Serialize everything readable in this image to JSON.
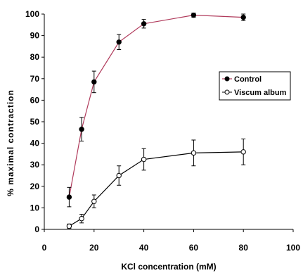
{
  "chart_data": {
    "type": "line",
    "xlabel": "KCl concentration (mM)",
    "ylabel": "% maximal contraction",
    "xlim": [
      0,
      100
    ],
    "ylim": [
      0,
      100
    ],
    "xticks": [
      0,
      20,
      40,
      60,
      80,
      100
    ],
    "yticks": [
      0,
      10,
      20,
      30,
      40,
      50,
      60,
      70,
      80,
      90,
      100
    ],
    "xtick_labels": [
      "0",
      "20",
      "40",
      "60",
      "80",
      "100"
    ],
    "ytick_labels": [
      "0",
      "10",
      "20",
      "30",
      "40",
      "50",
      "60",
      "70",
      "80",
      "90",
      "100"
    ],
    "grid": false,
    "legend_position": "right",
    "series": [
      {
        "name": "Control",
        "marker": "filled-circle",
        "color": "#b03a5b",
        "marker_color": "#000000",
        "x": [
          10,
          15,
          20,
          30,
          40,
          60,
          80
        ],
        "y": [
          15,
          46.5,
          68.5,
          87,
          95.5,
          99.5,
          98.5
        ],
        "err": [
          4.5,
          5.5,
          5,
          3.5,
          2,
          1,
          1.5
        ]
      },
      {
        "name": "Viscum album",
        "marker": "open-circle",
        "color": "#000000",
        "marker_color": "#000000",
        "x": [
          10,
          15,
          20,
          30,
          40,
          60,
          80
        ],
        "y": [
          1.5,
          5,
          13,
          25,
          32.5,
          35.5,
          36
        ],
        "err": [
          1,
          2,
          3,
          4.5,
          5,
          6,
          6
        ]
      }
    ]
  }
}
